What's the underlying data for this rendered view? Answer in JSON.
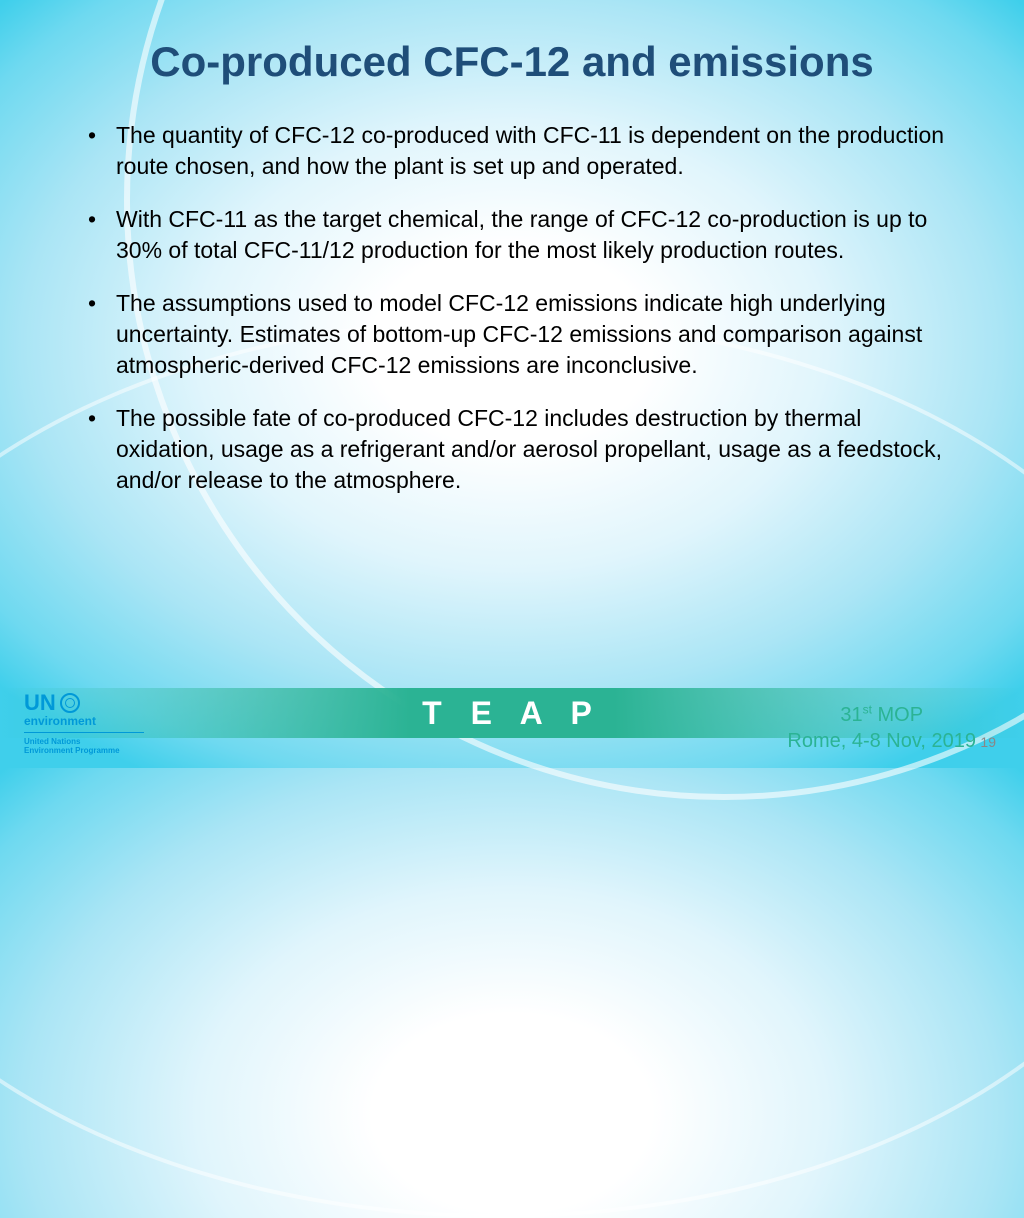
{
  "title": "Co-produced CFC-12 and emissions",
  "bullets": [
    "The quantity of CFC-12 co-produced with CFC-11 is dependent on the production route chosen, and how the plant is set up and operated.",
    "With CFC-11 as the target chemical, the range of CFC-12 co-production is up to 30% of total CFC-11/12 production for the most likely production routes.",
    "The assumptions used to model CFC-12 emissions indicate high underlying uncertainty. Estimates of bottom-up CFC-12 emissions and comparison against atmospheric-derived CFC-12 emissions are inconclusive.",
    "The possible fate of co-produced CFC-12 includes destruction by thermal oxidation, usage as a refrigerant and/or aerosol propellant, usage as a feedstock, and/or release to the atmosphere."
  ],
  "footer_logo_text": "T E A P",
  "un": {
    "abbr": "UN",
    "env": "environment",
    "sub1": "United Nations",
    "sub2": "Environment Programme"
  },
  "event": {
    "line1_pre": "31",
    "line1_sup": "st",
    "line1_post": "  MOP",
    "line2": "Rome, 4-8 Nov, 2019"
  },
  "page_number": "19",
  "colors": {
    "title": "#1f4e79",
    "body_text": "#000000",
    "band": "#2bb394",
    "teap_text": "#ffffff",
    "un_blue": "#0099d8",
    "event_text": "#2bb394",
    "bg_center": "#ffffff",
    "bg_edge": "#3fcfeb"
  },
  "typography": {
    "title_fontsize": 42,
    "body_fontsize": 23,
    "teap_fontsize": 32,
    "event_fontsize": 20
  }
}
